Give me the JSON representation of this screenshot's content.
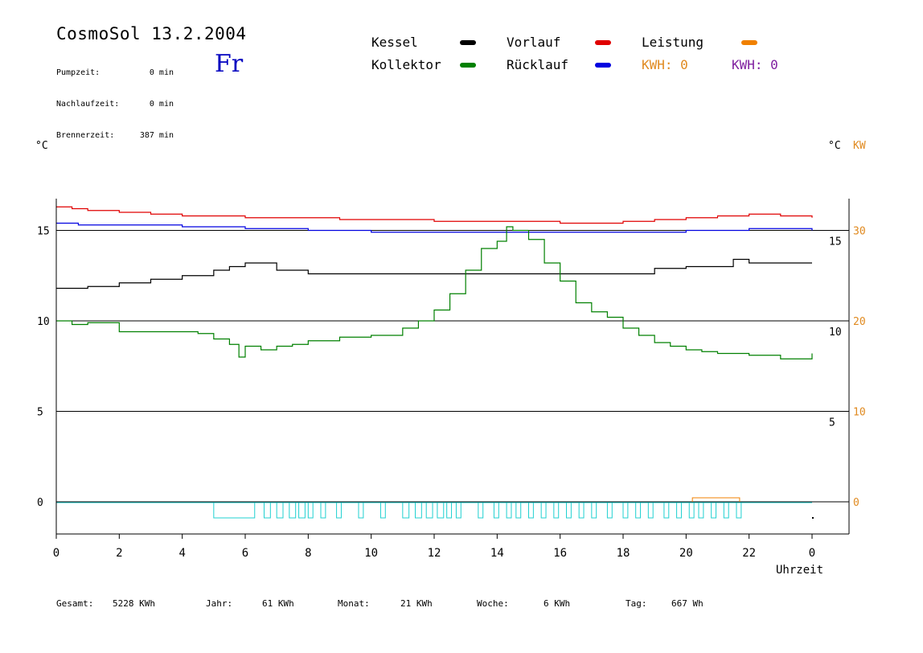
{
  "header": {
    "title": "CosmoSol 13.2.2004",
    "day": "Fr",
    "stats": [
      {
        "label": "Pumpzeit:",
        "value": "0 min"
      },
      {
        "label": "Nachlaufzeit:",
        "value": "0 min"
      },
      {
        "label": "Brennerzeit:",
        "value": "387 min"
      }
    ]
  },
  "legend": {
    "kessel": {
      "label": "Kessel",
      "color": "#000000"
    },
    "kollektor": {
      "label": "Kollektor",
      "color": "#008000"
    },
    "vorlauf": {
      "label": "Vorlauf",
      "color": "#e00000"
    },
    "ruecklauf": {
      "label": "Rücklauf",
      "color": "#0000e0"
    },
    "leistung": {
      "label": "Leistung",
      "color": "#f08000"
    },
    "kwh1": {
      "label": "KWH: 0",
      "color": "#e08a20"
    },
    "kwh2": {
      "label": "KWH: 0",
      "color": "#8020a0"
    }
  },
  "axes": {
    "left_unit": "°C",
    "right_unit_c": "°C",
    "right_unit_kw": "KW",
    "xlabel": "Uhrzeit"
  },
  "footer": [
    {
      "label": "Gesamt:",
      "value": "5228 KWh"
    },
    {
      "label": "Jahr:",
      "value": "61 KWh"
    },
    {
      "label": "Monat:",
      "value": "21 KWh"
    },
    {
      "label": "Woche:",
      "value": "6 KWh"
    },
    {
      "label": "Tag:",
      "value": "667 Wh"
    }
  ],
  "chart_data": {
    "type": "line",
    "x_ticks": [
      "0",
      "2",
      "4",
      "6",
      "8",
      "10",
      "12",
      "14",
      "16",
      "18",
      "20",
      "22",
      "0"
    ],
    "x_range": [
      0,
      24
    ],
    "left_y_ticks": [
      "15",
      "10",
      "5",
      "0"
    ],
    "inner_y_ticks": [
      "15",
      "10",
      "5"
    ],
    "right_y_ticks": [
      "30",
      "20",
      "10",
      "0"
    ],
    "ylim_c": [
      -1.5,
      16.5
    ],
    "ylim_kw": [
      -3,
      33
    ],
    "grid": "horizontal",
    "series": [
      {
        "name": "Vorlauf",
        "color": "#e00000",
        "x": [
          0,
          0.5,
          1,
          2,
          3,
          4,
          5,
          6,
          7,
          8,
          9,
          10,
          11,
          12,
          13,
          14,
          15,
          16,
          17,
          18,
          19,
          20,
          21,
          22,
          23,
          24
        ],
        "y": [
          16.3,
          16.2,
          16.1,
          16.0,
          15.9,
          15.8,
          15.8,
          15.7,
          15.7,
          15.7,
          15.6,
          15.6,
          15.6,
          15.5,
          15.5,
          15.5,
          15.5,
          15.4,
          15.4,
          15.5,
          15.6,
          15.7,
          15.8,
          15.9,
          15.8,
          15.7
        ]
      },
      {
        "name": "Rücklauf",
        "color": "#0000e0",
        "x": [
          0,
          0.7,
          2,
          4,
          6,
          8,
          10,
          12,
          14,
          16,
          18,
          20,
          22,
          24
        ],
        "y": [
          15.4,
          15.3,
          15.3,
          15.2,
          15.1,
          15.0,
          14.9,
          14.9,
          14.9,
          14.9,
          14.9,
          15.0,
          15.1,
          15.0
        ]
      },
      {
        "name": "Kessel",
        "color": "#000000",
        "x": [
          0,
          1,
          2,
          3,
          4,
          5,
          5.5,
          6,
          6.5,
          7,
          8,
          9,
          10,
          12,
          14,
          16,
          18,
          19,
          20,
          21,
          21.5,
          22,
          23,
          24
        ],
        "y": [
          11.8,
          11.9,
          12.1,
          12.3,
          12.5,
          12.8,
          13.0,
          13.2,
          13.2,
          12.8,
          12.6,
          12.6,
          12.6,
          12.6,
          12.6,
          12.6,
          12.6,
          12.9,
          13.0,
          13.0,
          13.4,
          13.2,
          13.2,
          13.2
        ]
      },
      {
        "name": "Kollektor",
        "color": "#008000",
        "x": [
          0,
          0.5,
          1,
          1.5,
          2,
          3,
          4,
          4.5,
          5,
          5.5,
          5.8,
          6,
          6.5,
          7,
          7.5,
          8,
          9,
          10,
          11,
          11.5,
          12,
          12.5,
          13,
          13.5,
          14,
          14.3,
          14.5,
          15,
          15.5,
          16,
          16.5,
          17,
          17.5,
          18,
          18.5,
          19,
          19.5,
          20,
          20.5,
          21,
          22,
          23,
          23.5,
          24
        ],
        "y": [
          10.0,
          9.8,
          9.9,
          9.9,
          9.4,
          9.4,
          9.4,
          9.3,
          9.0,
          8.7,
          8.0,
          8.6,
          8.4,
          8.6,
          8.7,
          8.9,
          9.1,
          9.2,
          9.6,
          10.0,
          10.6,
          11.5,
          12.8,
          14.0,
          14.4,
          15.2,
          15.0,
          14.5,
          13.2,
          12.2,
          11.0,
          10.5,
          10.2,
          9.6,
          9.2,
          8.8,
          8.6,
          8.4,
          8.3,
          8.2,
          8.1,
          7.9,
          7.9,
          8.2
        ]
      },
      {
        "name": "Leistung",
        "color": "#f08000",
        "x": [
          20.2,
          21.7
        ],
        "y": [
          0.4,
          0.4
        ]
      }
    ],
    "pump_cycles_cyan": [
      [
        5.0,
        6.3
      ],
      [
        6.6,
        6.8
      ],
      [
        7.0,
        7.2
      ],
      [
        7.4,
        7.6
      ],
      [
        7.7,
        7.9
      ],
      [
        8.0,
        8.15
      ],
      [
        8.4,
        8.55
      ],
      [
        8.9,
        9.05
      ],
      [
        9.6,
        9.75
      ],
      [
        10.3,
        10.45
      ],
      [
        11.0,
        11.2
      ],
      [
        11.4,
        11.6
      ],
      [
        11.75,
        11.95
      ],
      [
        12.1,
        12.3
      ],
      [
        12.4,
        12.55
      ],
      [
        12.7,
        12.85
      ],
      [
        13.4,
        13.55
      ],
      [
        13.9,
        14.05
      ],
      [
        14.3,
        14.45
      ],
      [
        14.6,
        14.75
      ],
      [
        15.0,
        15.15
      ],
      [
        15.4,
        15.55
      ],
      [
        15.8,
        15.95
      ],
      [
        16.2,
        16.35
      ],
      [
        16.6,
        16.75
      ],
      [
        17.0,
        17.15
      ],
      [
        17.5,
        17.65
      ],
      [
        18.0,
        18.15
      ],
      [
        18.4,
        18.55
      ],
      [
        18.8,
        18.95
      ],
      [
        19.3,
        19.45
      ],
      [
        19.7,
        19.85
      ],
      [
        20.1,
        20.25
      ],
      [
        20.4,
        20.55
      ],
      [
        20.8,
        20.95
      ],
      [
        21.2,
        21.35
      ],
      [
        21.6,
        21.75
      ]
    ]
  }
}
